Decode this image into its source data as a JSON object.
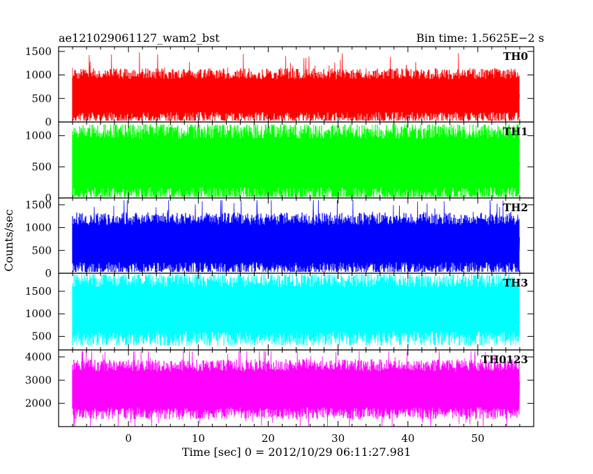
{
  "header": {
    "title": "ae121029061127_wam2_bst",
    "bin_time": "Bin time: 1.5625E−2 s"
  },
  "xlabel": "Time [sec] 0 = 2012/10/29 06:11:27.981",
  "ylabel": "Counts/sec",
  "chart_data": {
    "type": "line",
    "xlim": [
      -10,
      58
    ],
    "x_ticks": [
      0,
      10,
      20,
      30,
      40,
      50
    ],
    "x_tick_labels": [
      "0",
      "10",
      "20",
      "30",
      "40",
      "50"
    ],
    "data_x_range": [
      -8,
      56
    ],
    "bin_time_s": 0.015625,
    "panels": [
      {
        "name": "TH0",
        "color": "#ff0000",
        "ylim": [
          0,
          1600
        ],
        "y_ticks": [
          0,
          500,
          1000,
          1500
        ],
        "y_tick_labels": [
          "0",
          "500",
          "1000",
          "1500"
        ],
        "mean": 560,
        "typical_low": 150,
        "typical_high": 1000,
        "min": 30,
        "max": 1570
      },
      {
        "name": "TH1",
        "color": "#00ff00",
        "ylim": [
          0,
          1220
        ],
        "y_ticks": [
          0,
          500,
          1000
        ],
        "y_tick_labels": [
          "0",
          "500",
          "1000"
        ],
        "mean": 560,
        "typical_low": 100,
        "typical_high": 1050,
        "min": 20,
        "max": 1180
      },
      {
        "name": "TH2",
        "color": "#0000ff",
        "ylim": [
          0,
          1650
        ],
        "y_ticks": [
          0,
          500,
          1000,
          1500
        ],
        "y_tick_labels": [
          "0",
          "500",
          "1000",
          "1500"
        ],
        "mean": 650,
        "typical_low": 200,
        "typical_high": 1200,
        "min": 30,
        "max": 1600
      },
      {
        "name": "TH3",
        "color": "#00ffff",
        "ylim": [
          200,
          1900
        ],
        "y_ticks": [
          500,
          1000,
          1500
        ],
        "y_tick_labels": [
          "500",
          "1000",
          "1500"
        ],
        "mean": 1100,
        "typical_low": 500,
        "typical_high": 1700,
        "min": 300,
        "max": 1870
      },
      {
        "name": "TH0123",
        "color": "#ff00ff",
        "ylim": [
          1000,
          4300
        ],
        "y_ticks": [
          2000,
          3000,
          4000
        ],
        "y_tick_labels": [
          "2000",
          "3000",
          "4000"
        ],
        "mean": 2600,
        "typical_low": 1700,
        "typical_high": 3600,
        "min": 1000,
        "max": 4250
      }
    ]
  }
}
